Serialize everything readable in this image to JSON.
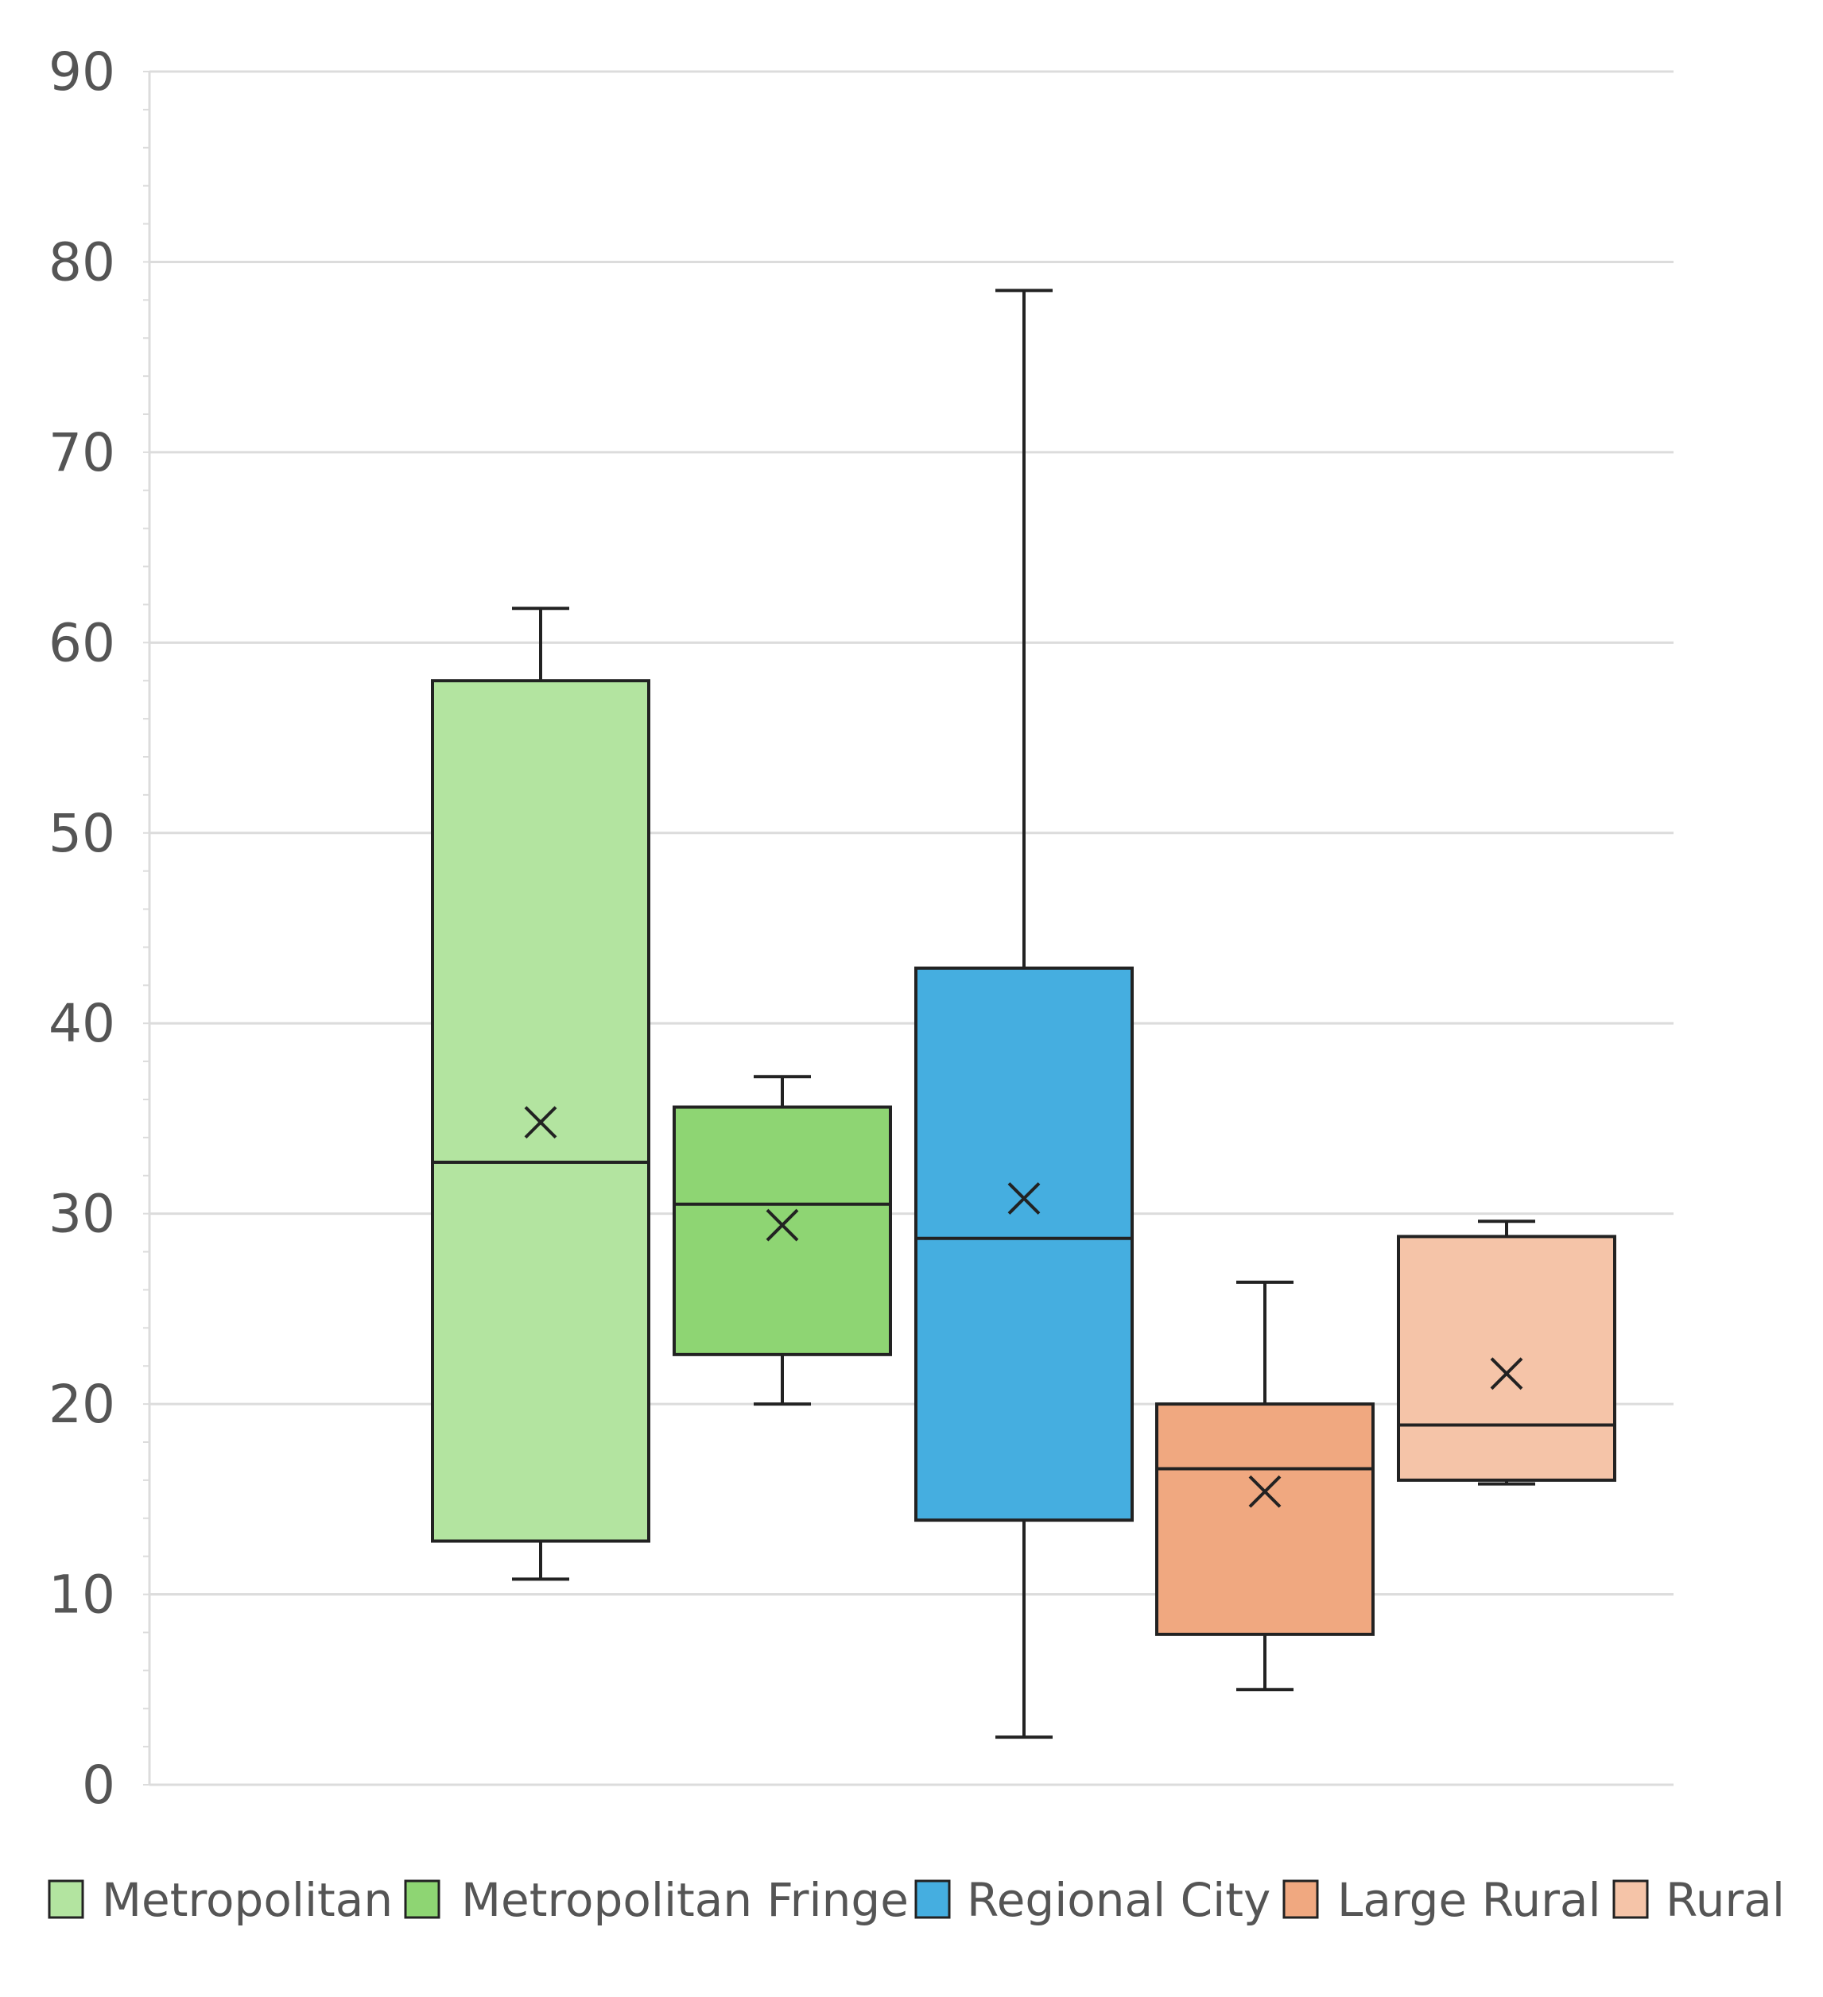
{
  "chart_data": {
    "type": "box",
    "title": "",
    "xlabel": "",
    "ylabel": "",
    "ylim": [
      0,
      90
    ],
    "y_ticks": [
      0,
      10,
      20,
      30,
      40,
      50,
      60,
      70,
      80,
      90
    ],
    "y_tick_labels": [
      "0",
      "10",
      "20",
      "30",
      "40",
      "50",
      "60",
      "70",
      "80",
      "90"
    ],
    "grid": true,
    "legend_position": "bottom",
    "series": [
      {
        "name": "Metropolitan",
        "color": "#b3e4a0",
        "min": 10.8,
        "q1": 12.8,
        "median": 32.7,
        "q3": 58.0,
        "max": 61.8,
        "mean": 34.8
      },
      {
        "name": "Metropolitan Fringe",
        "color": "#8ed573",
        "min": 20.0,
        "q1": 22.6,
        "median": 30.5,
        "q3": 35.6,
        "max": 37.2,
        "mean": 29.4
      },
      {
        "name": "Regional City",
        "color": "#45aee0",
        "min": 2.5,
        "q1": 13.9,
        "median": 28.7,
        "q3": 42.9,
        "max": 78.5,
        "mean": 30.8
      },
      {
        "name": "Large Rural",
        "color": "#f0a880",
        "min": 5.0,
        "q1": 7.9,
        "median": 16.6,
        "q3": 20.0,
        "max": 26.4,
        "mean": 15.4
      },
      {
        "name": "Rural",
        "color": "#f5c4a8",
        "min": 15.8,
        "q1": 16.0,
        "median": 18.9,
        "q3": 28.8,
        "max": 29.6,
        "mean": 21.6
      }
    ]
  }
}
